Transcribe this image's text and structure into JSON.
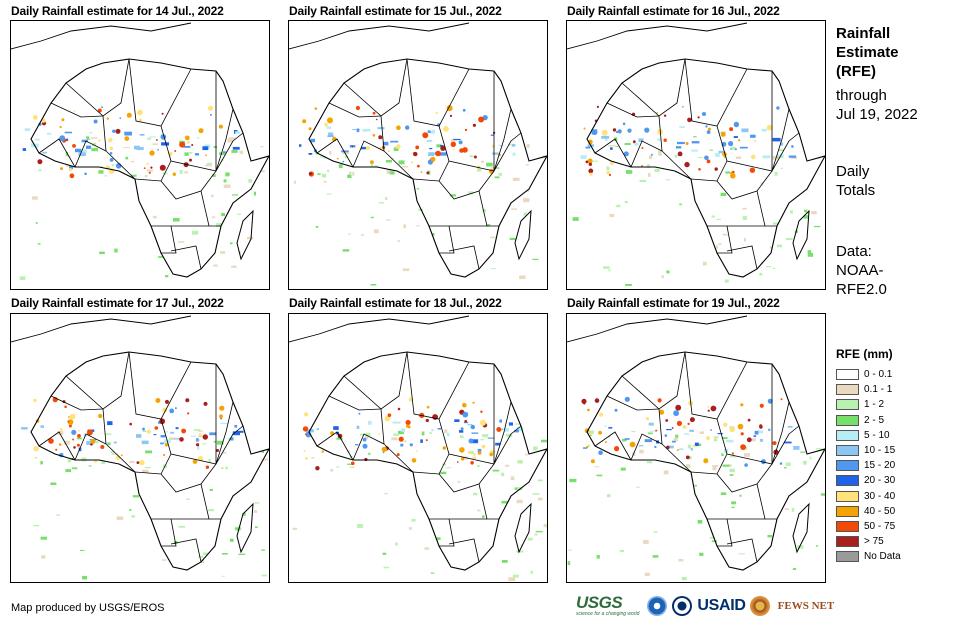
{
  "panels": [
    {
      "title": "Daily Rainfall estimate for 14 Jul., 2022"
    },
    {
      "title": "Daily Rainfall estimate for 15 Jul., 2022"
    },
    {
      "title": "Daily Rainfall estimate for 16 Jul., 2022"
    },
    {
      "title": "Daily Rainfall estimate for 17 Jul., 2022"
    },
    {
      "title": "Daily Rainfall estimate for 18 Jul., 2022"
    },
    {
      "title": "Daily Rainfall estimate for 19 Jul., 2022"
    }
  ],
  "sidebar": {
    "title_lines": [
      "Rainfall",
      "Estimate",
      "(RFE)"
    ],
    "through_lines": [
      "through",
      "Jul 19, 2022"
    ],
    "totals_lines": [
      "Daily",
      "Totals"
    ],
    "data_lines": [
      "Data:",
      "NOAA-",
      "RFE2.0"
    ]
  },
  "legend": {
    "title": "RFE (mm)",
    "items": [
      {
        "label": "0 - 0.1",
        "color": "#ffffff"
      },
      {
        "label": "0.1 - 1",
        "color": "#ead9bf"
      },
      {
        "label": "1 - 2",
        "color": "#b9f2b0"
      },
      {
        "label": "2 - 5",
        "color": "#77e06a"
      },
      {
        "label": "5 - 10",
        "color": "#b6eef4"
      },
      {
        "label": "10 - 15",
        "color": "#8cc6f2"
      },
      {
        "label": "15 - 20",
        "color": "#4f97ef"
      },
      {
        "label": "20 - 30",
        "color": "#1e63e8"
      },
      {
        "label": "30 - 40",
        "color": "#ffe27a"
      },
      {
        "label": "40 - 50",
        "color": "#f5a300"
      },
      {
        "label": "50 - 75",
        "color": "#f24a06"
      },
      {
        "label": "> 75",
        "color": "#a8201e"
      },
      {
        "label": "No Data",
        "color": "#9a9a9a"
      }
    ]
  },
  "credit": "Map produced by USGS/EROS",
  "logos": {
    "usgs": "USGS",
    "usgs_tagline": "science for a changing world",
    "usaid": "USAID",
    "fews": "FEWS NET"
  }
}
